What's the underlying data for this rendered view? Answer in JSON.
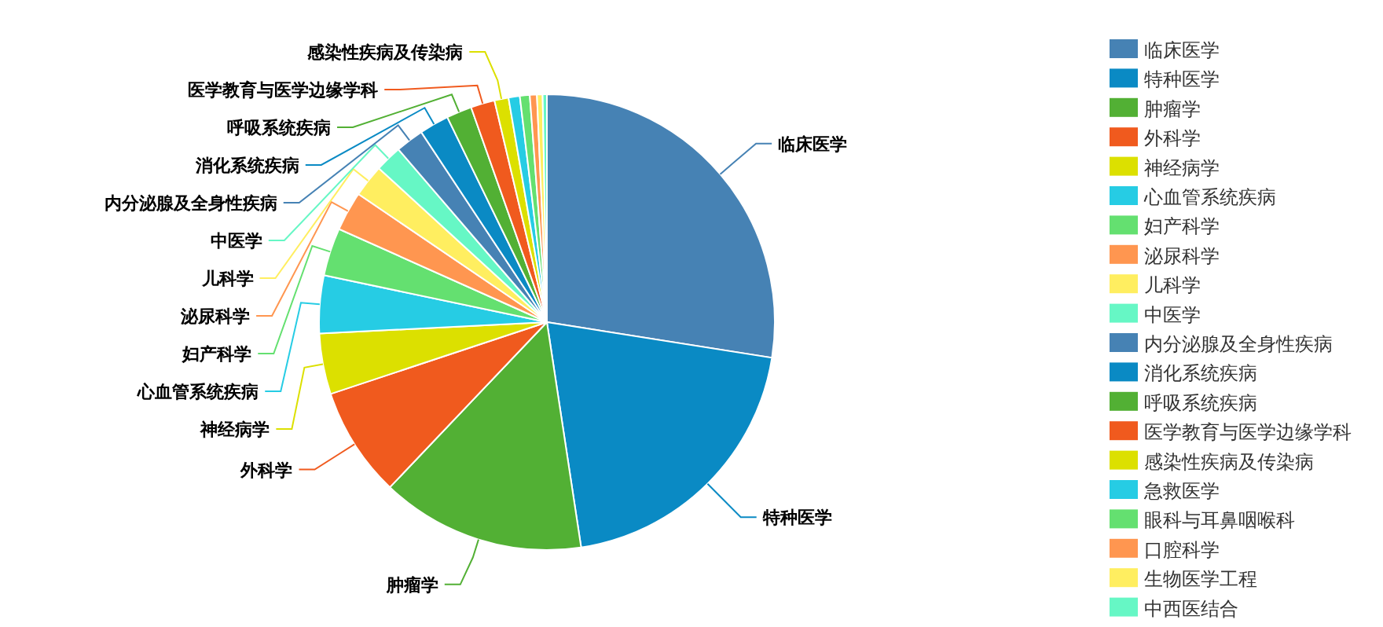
{
  "chart_data": {
    "type": "pie",
    "legend": "right",
    "categories": [
      "临床医学",
      "特种医学",
      "肿瘤学",
      "外科学",
      "神经病学",
      "心血管系统疾病",
      "妇产科学",
      "泌尿科学",
      "儿科学",
      "中医学",
      "内分泌腺及全身性疾病",
      "消化系统疾病",
      "呼吸系统疾病",
      "医学教育与医学边缘学科",
      "感染性疾病及传染病",
      "急救医学",
      "眼科与耳鼻咽喉科",
      "口腔科学",
      "生物医学工程",
      "中西医结合"
    ],
    "values": [
      27.5,
      20.1,
      14.5,
      7.8,
      4.3,
      4.1,
      3.4,
      2.8,
      2.3,
      1.9,
      2.0,
      2.1,
      1.8,
      1.7,
      1.0,
      0.8,
      0.7,
      0.5,
      0.4,
      0.3
    ],
    "colors": [
      "#4682b4",
      "#0a8ac4",
      "#52b034",
      "#f05a1e",
      "#dce000",
      "#26cce4",
      "#64e070",
      "#ff9650",
      "#ffee60",
      "#66f7c5",
      "#4682b4",
      "#0a8ac4",
      "#52b034",
      "#f05a1e",
      "#dce000",
      "#26cce4",
      "#64e070",
      "#ff9650",
      "#ffee60",
      "#66f7c5"
    ]
  }
}
